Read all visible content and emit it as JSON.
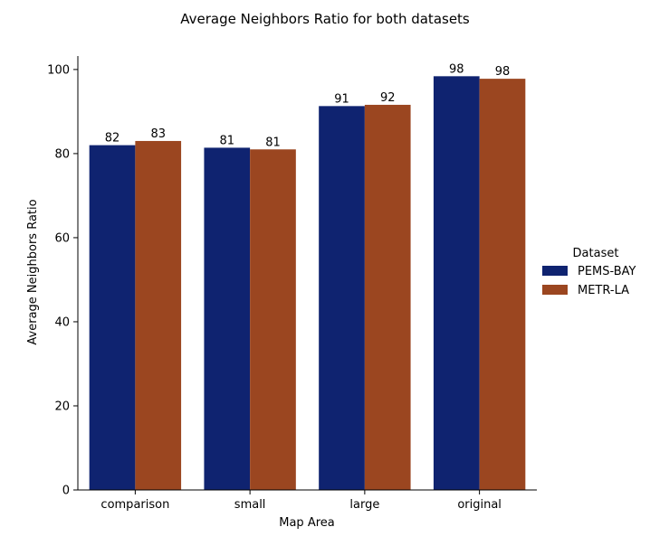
{
  "chart_data": {
    "type": "bar",
    "title": "Average Neighbors Ratio for both datasets",
    "xlabel": "Map Area",
    "ylabel": "Average Neighbors Ratio",
    "categories": [
      "comparison",
      "small",
      "large",
      "original"
    ],
    "series": [
      {
        "name": "PEMS-BAY",
        "values": [
          82.0,
          81.4,
          91.3,
          98.4
        ],
        "labels": [
          "82",
          "81",
          "91",
          "98"
        ],
        "color": "#0f2370"
      },
      {
        "name": "METR-LA",
        "values": [
          83.0,
          81.0,
          91.6,
          97.8
        ],
        "labels": [
          "83",
          "81",
          "92",
          "98"
        ],
        "color": "#9b4620"
      }
    ],
    "ylim": [
      0,
      103.2
    ],
    "yticks": [
      0,
      20,
      40,
      60,
      80,
      100
    ],
    "grid": false,
    "legend": {
      "title": "Dataset",
      "placement": "right"
    }
  }
}
